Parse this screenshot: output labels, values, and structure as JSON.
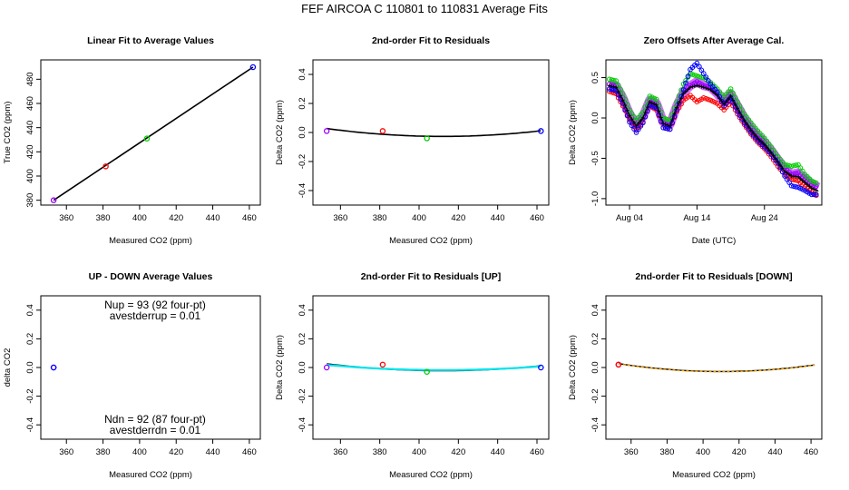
{
  "figure": {
    "title": "FEF   AIRCOA C   110801 to 110831   Average Fits"
  },
  "colors": {
    "axis": "#000000",
    "red": "#ff0000",
    "green": "#00cc00",
    "blue": "#0000ff",
    "purple": "#9900ff",
    "cyan": "#00e5ee",
    "orange": "#ffa500",
    "black": "#000000",
    "magenta_fill": "#cc55ff"
  },
  "chart_data": [
    {
      "id": "p1",
      "type": "scatter",
      "title": "Linear Fit to Average Values",
      "xlabel": "Measured CO2 (ppm)",
      "ylabel": "True CO2 (ppm)",
      "xlim": [
        346,
        466
      ],
      "ylim": [
        376,
        496
      ],
      "xticks": [
        360,
        380,
        400,
        420,
        440,
        460
      ],
      "yticks": [
        380,
        400,
        420,
        440,
        460,
        480
      ],
      "points": [
        {
          "x": 353,
          "y": 380,
          "color": "purple"
        },
        {
          "x": 381.5,
          "y": 408,
          "color": "red"
        },
        {
          "x": 404,
          "y": 431,
          "color": "green"
        },
        {
          "x": 462,
          "y": 490,
          "color": "blue"
        }
      ],
      "lines": [
        {
          "x": [
            353,
            462
          ],
          "y": [
            380,
            490
          ],
          "color": "black",
          "width": 1.6
        }
      ]
    },
    {
      "id": "p2",
      "type": "scatter",
      "title": "2nd-order Fit to Residuals",
      "xlabel": "Measured CO2 (ppm)",
      "ylabel": "Delta CO2 (ppm)",
      "xlim": [
        346,
        466
      ],
      "ylim": [
        -0.5,
        0.5
      ],
      "xticks": [
        360,
        380,
        400,
        420,
        440,
        460
      ],
      "yticks": [
        -0.4,
        -0.2,
        0.0,
        0.2,
        0.4
      ],
      "points": [
        {
          "x": 353,
          "y": 0.01,
          "color": "purple"
        },
        {
          "x": 381.5,
          "y": 0.01,
          "color": "red"
        },
        {
          "x": 404,
          "y": -0.04,
          "color": "green"
        },
        {
          "x": 462,
          "y": 0.01,
          "color": "blue"
        }
      ],
      "curves": [
        {
          "x_from": 353,
          "x_to": 462,
          "vertex_x": 412,
          "vertex_y": -0.027,
          "end_y": 0.012,
          "color": "black",
          "width": 1.6
        }
      ]
    },
    {
      "id": "p3",
      "type": "scatter",
      "title": "Zero Offsets After Average Cal.",
      "xlabel": "Date (UTC)",
      "ylabel": "Delta CO2 (ppm)",
      "xlim": [
        0.5,
        32.5
      ],
      "ylim": [
        -1.08,
        0.72
      ],
      "xticks": [
        4,
        14,
        24
      ],
      "xticklabels": [
        "Aug 04",
        "Aug 14",
        "Aug 24"
      ],
      "yticks": [
        -1.0,
        -0.5,
        0.0,
        0.5
      ],
      "series": [
        {
          "name": "purple",
          "color": "purple",
          "x": [
            1,
            2,
            3,
            4,
            5,
            6,
            7,
            8,
            9,
            10,
            11,
            12,
            13,
            14,
            15,
            16,
            17,
            18,
            19,
            20,
            21,
            22,
            23,
            24,
            25,
            26,
            27,
            28,
            29,
            30,
            31,
            32
          ],
          "y": [
            0.42,
            0.4,
            0.25,
            0.05,
            -0.08,
            0.02,
            0.22,
            0.18,
            -0.05,
            -0.08,
            0.15,
            0.32,
            0.4,
            0.45,
            0.4,
            0.38,
            0.3,
            0.2,
            0.3,
            0.15,
            0.0,
            -0.12,
            -0.22,
            -0.3,
            -0.4,
            -0.52,
            -0.62,
            -0.7,
            -0.68,
            -0.75,
            -0.82,
            -0.86
          ]
        },
        {
          "name": "green",
          "color": "green",
          "x": [
            1,
            2,
            3,
            4,
            5,
            6,
            7,
            8,
            9,
            10,
            11,
            12,
            13,
            14,
            15,
            16,
            17,
            18,
            19,
            20,
            21,
            22,
            23,
            24,
            25,
            26,
            27,
            28,
            29,
            30,
            31,
            32
          ],
          "y": [
            0.48,
            0.46,
            0.3,
            0.1,
            -0.03,
            0.07,
            0.27,
            0.23,
            0.0,
            -0.03,
            0.2,
            0.42,
            0.55,
            0.52,
            0.5,
            0.44,
            0.36,
            0.26,
            0.36,
            0.2,
            0.05,
            -0.06,
            -0.16,
            -0.25,
            -0.36,
            -0.48,
            -0.58,
            -0.6,
            -0.58,
            -0.7,
            -0.78,
            -0.82
          ]
        },
        {
          "name": "red",
          "color": "red",
          "x": [
            1,
            2,
            3,
            4,
            5,
            6,
            7,
            8,
            9,
            10,
            11,
            12,
            13,
            14,
            15,
            16,
            17,
            18,
            19,
            20,
            21,
            22,
            23,
            24,
            25,
            26,
            27,
            28,
            29,
            30,
            31,
            32
          ],
          "y": [
            0.33,
            0.3,
            0.15,
            -0.02,
            -0.15,
            -0.05,
            0.15,
            0.1,
            -0.12,
            -0.14,
            0.08,
            0.22,
            0.28,
            0.2,
            0.25,
            0.22,
            0.18,
            0.1,
            0.2,
            0.05,
            -0.08,
            -0.2,
            -0.3,
            -0.38,
            -0.48,
            -0.6,
            -0.7,
            -0.76,
            -0.78,
            -0.85,
            -0.92,
            -0.98
          ]
        },
        {
          "name": "blue",
          "color": "blue",
          "x": [
            1,
            2,
            3,
            4,
            5,
            6,
            7,
            8,
            9,
            10,
            11,
            12,
            13,
            14,
            15,
            16,
            17,
            18,
            19,
            20,
            21,
            22,
            23,
            24,
            25,
            26,
            27,
            28,
            29,
            30,
            31,
            32
          ],
          "y": [
            0.36,
            0.34,
            0.18,
            -0.05,
            -0.18,
            -0.06,
            0.16,
            0.12,
            -0.12,
            -0.14,
            0.1,
            0.35,
            0.6,
            0.68,
            0.55,
            0.42,
            0.32,
            0.15,
            0.25,
            0.08,
            -0.06,
            -0.18,
            -0.28,
            -0.36,
            -0.45,
            -0.56,
            -0.72,
            -0.84,
            -0.86,
            -0.9,
            -0.95,
            -0.95
          ]
        },
        {
          "name": "black",
          "color": "black",
          "x": [
            1,
            2,
            3,
            4,
            5,
            6,
            7,
            8,
            9,
            10,
            11,
            12,
            13,
            14,
            15,
            16,
            17,
            18,
            19,
            20,
            21,
            22,
            23,
            24,
            25,
            26,
            27,
            28,
            29,
            30,
            31,
            32
          ],
          "y": [
            0.4,
            0.38,
            0.22,
            0.03,
            -0.1,
            0.0,
            0.2,
            0.16,
            -0.07,
            -0.1,
            0.13,
            0.3,
            0.38,
            0.4,
            0.38,
            0.35,
            0.28,
            0.17,
            0.27,
            0.12,
            -0.03,
            -0.15,
            -0.25,
            -0.33,
            -0.43,
            -0.55,
            -0.66,
            -0.72,
            -0.73,
            -0.8,
            -0.87,
            -0.91
          ]
        }
      ]
    },
    {
      "id": "p4",
      "type": "scatter",
      "title": "UP - DOWN Average Values",
      "xlabel": "Measured CO2 (ppm)",
      "ylabel": "delta CO2",
      "xlim": [
        346,
        466
      ],
      "ylim": [
        -0.5,
        0.5
      ],
      "xticks": [
        360,
        380,
        400,
        420,
        440,
        460
      ],
      "yticks": [
        -0.4,
        -0.2,
        0.0,
        0.2,
        0.4
      ],
      "points": [
        {
          "x": 353,
          "y": 0.0,
          "color": "purple"
        },
        {
          "x": 353,
          "y": 0.0,
          "color": "blue"
        }
      ],
      "annotations": {
        "nup": "Nup = 93 (92 four-pt)",
        "avestderrup": "avestderrup =  0.01",
        "ndn": "Ndn = 92 (87 four-pt)",
        "avestderrdn": "avestderrdn =  0.01"
      }
    },
    {
      "id": "p5",
      "type": "scatter",
      "title": "2nd-order Fit to Residuals [UP]",
      "xlabel": "Measured CO2 (ppm)",
      "ylabel": "Delta CO2 (ppm)",
      "xlim": [
        346,
        466
      ],
      "ylim": [
        -0.5,
        0.5
      ],
      "xticks": [
        360,
        380,
        400,
        420,
        440,
        460
      ],
      "yticks": [
        -0.4,
        -0.2,
        0.0,
        0.2,
        0.4
      ],
      "points": [
        {
          "x": 353,
          "y": 0.0,
          "color": "purple"
        },
        {
          "x": 381.5,
          "y": 0.02,
          "color": "red"
        },
        {
          "x": 404,
          "y": -0.03,
          "color": "green"
        },
        {
          "x": 462,
          "y": 0.0,
          "color": "blue"
        }
      ],
      "curves": [
        {
          "x_from": 353,
          "x_to": 462,
          "vertex_x": 412,
          "vertex_y": -0.022,
          "end_y": 0.012,
          "color": "black",
          "width": 1.6
        },
        {
          "x_from": 353,
          "x_to": 462,
          "vertex_x": 412,
          "vertex_y": -0.018,
          "end_y": 0.008,
          "color": "cyan",
          "width": 2.2
        }
      ]
    },
    {
      "id": "p6",
      "type": "scatter",
      "title": "2nd-order Fit to Residuals [DOWN]",
      "xlabel": "Measured CO2 (ppm)",
      "ylabel": "Delta CO2 (ppm)",
      "xlim": [
        346,
        466
      ],
      "ylim": [
        -0.5,
        0.5
      ],
      "xticks": [
        360,
        380,
        400,
        420,
        440,
        460
      ],
      "yticks": [
        -0.4,
        -0.2,
        0.0,
        0.2,
        0.4
      ],
      "points": [
        {
          "x": 353,
          "y": 0.02,
          "color": "purple"
        },
        {
          "x": 353,
          "y": 0.02,
          "color": "red"
        }
      ],
      "curves": [
        {
          "x_from": 353,
          "x_to": 462,
          "vertex_x": 410,
          "vertex_y": -0.028,
          "end_y": 0.018,
          "color": "black",
          "width": 1.4
        },
        {
          "x_from": 353,
          "x_to": 462,
          "vertex_x": 410,
          "vertex_y": -0.03,
          "end_y": 0.016,
          "color": "orange",
          "width": 1.4,
          "dashed": true
        }
      ]
    }
  ]
}
